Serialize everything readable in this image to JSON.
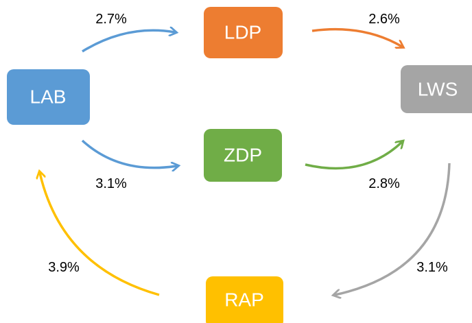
{
  "nodes": [
    {
      "label": "LAB"
    },
    {
      "label": "LDP"
    },
    {
      "label": "LWS"
    },
    {
      "label": "ZDP"
    },
    {
      "label": "RAP"
    }
  ],
  "edges": [
    {
      "label": "2.7%"
    },
    {
      "label": "2.6%"
    },
    {
      "label": "3.1%"
    },
    {
      "label": "2.8%"
    },
    {
      "label": "3.1%"
    },
    {
      "label": "3.9%"
    }
  ]
}
